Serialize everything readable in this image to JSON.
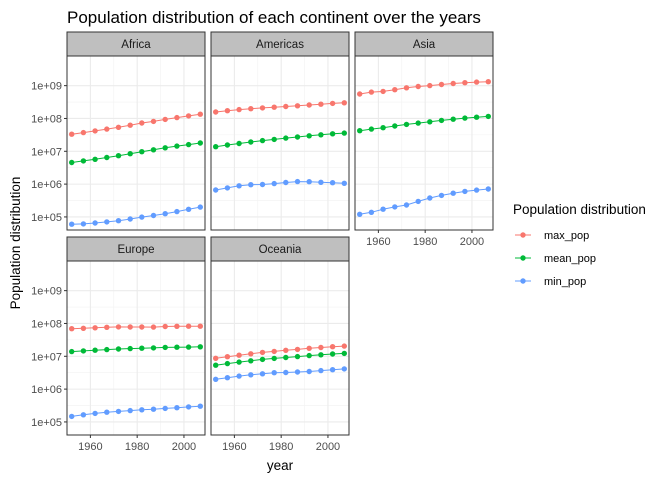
{
  "chart_data": {
    "type": "line",
    "title": "Population distribution of each continent over the years",
    "xlabel": "year",
    "ylabel": "Population distribution",
    "yscale": "log10",
    "xlim": [
      1950,
      2009
    ],
    "ylim": [
      40000,
      8000000000
    ],
    "x_ticks": [
      1960,
      1980,
      2000
    ],
    "y_ticks": [
      {
        "value": 100000,
        "label": "1e+05"
      },
      {
        "value": 1000000,
        "label": "1e+06"
      },
      {
        "value": 10000000,
        "label": "1e+07"
      },
      {
        "value": 100000000,
        "label": "1e+08"
      },
      {
        "value": 1000000000,
        "label": "1e+09"
      }
    ],
    "grid": true,
    "legend": {
      "title": "Population distribution",
      "position": "right"
    },
    "x": [
      1952,
      1957,
      1962,
      1967,
      1972,
      1977,
      1982,
      1987,
      1992,
      1997,
      2002,
      2007
    ],
    "series_meta": [
      {
        "name": "max_pop",
        "color": "#F8766D"
      },
      {
        "name": "mean_pop",
        "color": "#00BA38"
      },
      {
        "name": "min_pop",
        "color": "#619CFF"
      }
    ],
    "panels": [
      {
        "label": "Africa",
        "series": [
          {
            "name": "max_pop",
            "values": [
              33100000,
              37200000,
              41900000,
              47300000,
              53700000,
              62200000,
              73000000,
              81600000,
              93400000,
              106200000,
              119900000,
              135000000
            ]
          },
          {
            "name": "mean_pop",
            "values": [
              4570000,
              5090000,
              5720000,
              6480000,
              7350000,
              8470000,
              9700000,
              11100000,
              12800000,
              14400000,
              16000000,
              17900000
            ]
          },
          {
            "name": "min_pop",
            "values": [
              60000,
              61300,
              65300,
              70800,
              76600,
              86800,
              98600,
              110800,
              125900,
              145600,
              170400,
              199600
            ]
          }
        ]
      },
      {
        "label": "Americas",
        "series": [
          {
            "name": "max_pop",
            "values": [
              157600000,
              171900000,
              186500000,
              198700000,
              209900000,
              220200000,
              232200000,
              242800000,
              256900000,
              272900000,
              287700000,
              301100000
            ]
          },
          {
            "name": "mean_pop",
            "values": [
              13800000,
              15500000,
              17300000,
              19200000,
              21200000,
              23100000,
              25200000,
              27300000,
              29600000,
              31900000,
              33990000,
              35950000
            ]
          },
          {
            "name": "min_pop",
            "values": [
              662850,
              764900,
              887500,
              960200,
              975200,
              1039000,
              1116000,
              1191000,
              1183000,
              1138000,
              1101000,
              1056000
            ]
          }
        ]
      },
      {
        "label": "Asia",
        "series": [
          {
            "name": "max_pop",
            "values": [
              556300000,
              637400000,
              665800000,
              754600000,
              862000000,
              943500000,
              1000300000,
              1084000000,
              1165000000,
              1230000000,
              1280000000,
              1319000000
            ]
          },
          {
            "name": "mean_pop",
            "values": [
              42300000,
              47400000,
              52400000,
              59000000,
              66000000,
              72300000,
              79400000,
              87100000,
              94900000,
              102500000,
              109100000,
              115500000
            ]
          },
          {
            "name": "min_pop",
            "values": [
              120447,
              138655,
              171863,
              202182,
              230800,
              297410,
              377967,
              454612,
              529491,
              598561,
              656397,
              708573
            ]
          }
        ]
      },
      {
        "label": "Europe",
        "series": [
          {
            "name": "max_pop",
            "values": [
              69100000,
              71000000,
              73700000,
              76400000,
              78700000,
              78200000,
              78300000,
              77700000,
              80600000,
              82000000,
              82400000,
              82400000
            ]
          },
          {
            "name": "mean_pop",
            "values": [
              13900000,
              14600000,
              15300000,
              16000000,
              16700000,
              17200000,
              17600000,
              18000000,
              18600000,
              18900000,
              19100000,
              19500000
            ]
          },
          {
            "name": "min_pop",
            "values": [
              147962,
              165110,
              182053,
              198676,
              209275,
              221823,
              233997,
              244676,
              259012,
              271192,
              288030,
              301931
            ]
          }
        ]
      },
      {
        "label": "Oceania",
        "series": [
          {
            "name": "max_pop",
            "values": [
              8691212,
              9712569,
              10794968,
              11872264,
              13177000,
              14074100,
              15184200,
              16257249,
              17481977,
              18565243,
              19546792,
              20434176
            ]
          },
          {
            "name": "mean_pop",
            "values": [
              5343003,
              5970988,
              6641759,
              7300207,
              8053050,
              8619500,
              9164600,
              9790741,
              10459826,
              11120715,
              11727415,
              12274974
            ]
          },
          {
            "name": "min_pop",
            "values": [
              1994794,
              2229407,
              2488550,
              2728150,
              2929100,
              3164900,
              3210650,
              3317166,
              3437674,
              3676187,
              3908037,
              4115771
            ]
          }
        ]
      }
    ]
  }
}
